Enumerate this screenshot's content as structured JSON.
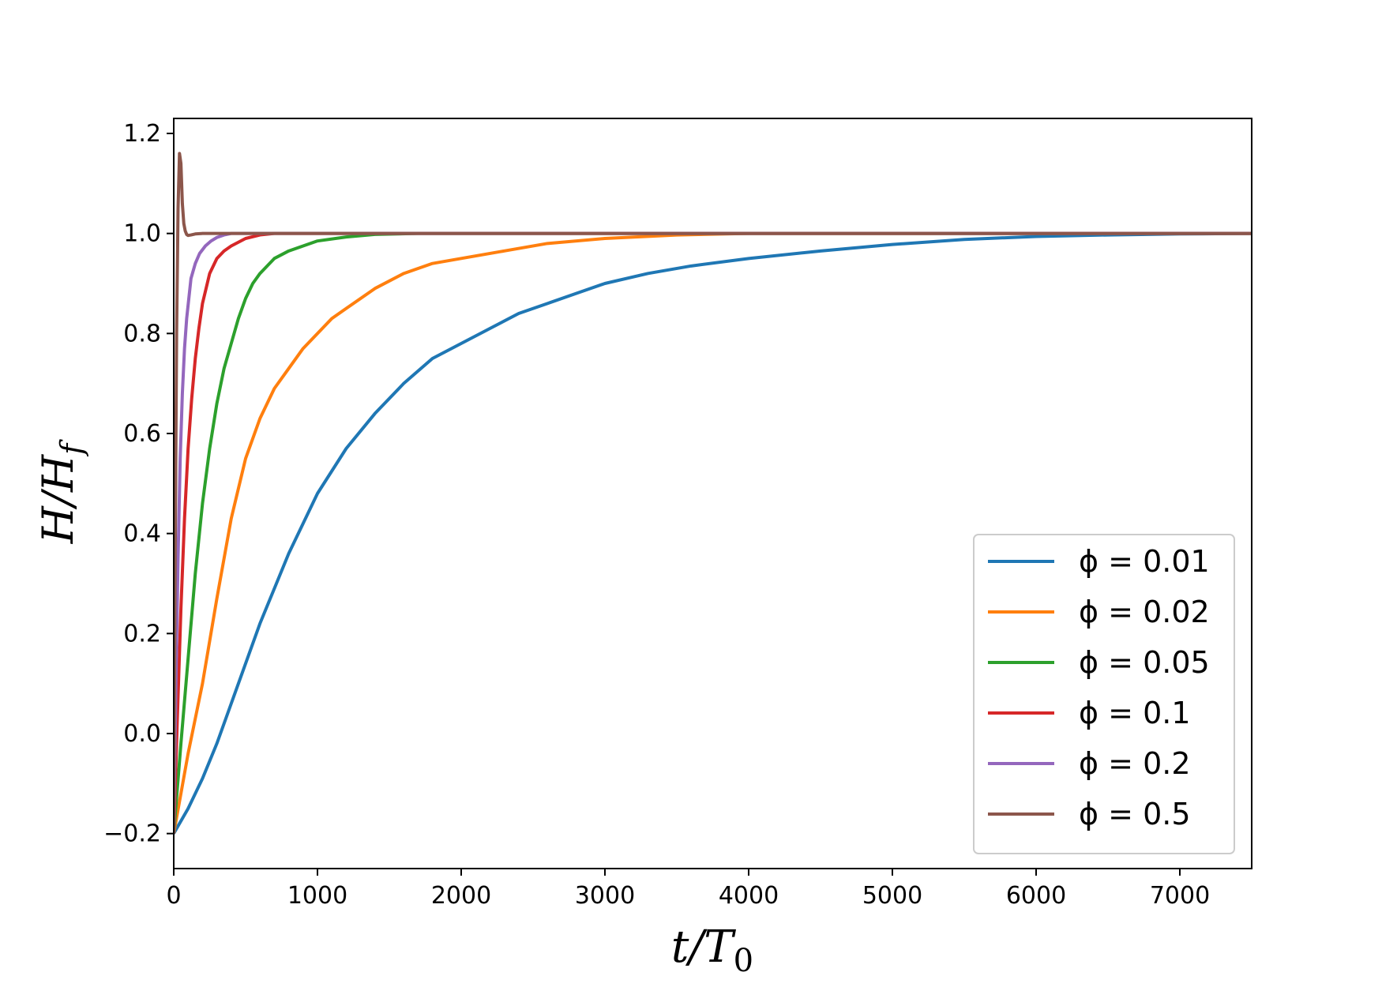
{
  "chart_data": {
    "type": "line",
    "title": "",
    "xlabel": "t/T_0",
    "ylabel": "H/H_f",
    "xlim": [
      0,
      7500
    ],
    "ylim": [
      -0.27,
      1.23
    ],
    "xticks": [
      0,
      1000,
      2000,
      3000,
      4000,
      5000,
      6000,
      7000
    ],
    "yticks": [
      -0.2,
      0.0,
      0.2,
      0.4,
      0.6,
      0.8,
      1.0,
      1.2
    ],
    "xtick_labels": [
      "0",
      "1000",
      "2000",
      "3000",
      "4000",
      "5000",
      "6000",
      "7000"
    ],
    "ytick_labels": [
      "−0.2",
      "0.0",
      "0.2",
      "0.4",
      "0.6",
      "0.8",
      "1.0",
      "1.2"
    ],
    "grid": false,
    "legend_position": "lower-right",
    "series": [
      {
        "name": "ϕ = 0.01",
        "color": "#1f77b4",
        "x": [
          0,
          100,
          200,
          300,
          400,
          500,
          600,
          700,
          800,
          900,
          1000,
          1200,
          1400,
          1600,
          1800,
          2000,
          2200,
          2400,
          2600,
          2800,
          3000,
          3300,
          3600,
          4000,
          4500,
          5000,
          5500,
          6000,
          6500,
          7000,
          7500
        ],
        "y": [
          -0.2,
          -0.15,
          -0.09,
          -0.02,
          0.06,
          0.14,
          0.22,
          0.29,
          0.36,
          0.42,
          0.48,
          0.57,
          0.64,
          0.7,
          0.75,
          0.78,
          0.81,
          0.84,
          0.86,
          0.88,
          0.9,
          0.92,
          0.935,
          0.95,
          0.965,
          0.978,
          0.988,
          0.994,
          0.997,
          0.999,
          1.0
        ]
      },
      {
        "name": "ϕ = 0.02",
        "color": "#ff7f0e",
        "x": [
          0,
          50,
          100,
          150,
          200,
          300,
          400,
          500,
          600,
          700,
          800,
          900,
          1000,
          1100,
          1200,
          1400,
          1600,
          1800,
          2000,
          2300,
          2600,
          3000,
          3500,
          4000,
          5000,
          7500
        ],
        "y": [
          -0.2,
          -0.12,
          -0.04,
          0.03,
          0.1,
          0.27,
          0.43,
          0.55,
          0.63,
          0.69,
          0.73,
          0.77,
          0.8,
          0.83,
          0.85,
          0.89,
          0.92,
          0.94,
          0.95,
          0.965,
          0.98,
          0.99,
          0.997,
          1.0,
          1.0,
          1.0
        ]
      },
      {
        "name": "ϕ = 0.05",
        "color": "#2ca02c",
        "x": [
          0,
          50,
          100,
          150,
          200,
          250,
          300,
          350,
          400,
          450,
          500,
          550,
          600,
          650,
          700,
          800,
          900,
          1000,
          1200,
          1400,
          1700,
          2000,
          7500
        ],
        "y": [
          -0.2,
          -0.02,
          0.15,
          0.32,
          0.46,
          0.57,
          0.66,
          0.73,
          0.78,
          0.83,
          0.87,
          0.9,
          0.92,
          0.935,
          0.95,
          0.965,
          0.975,
          0.985,
          0.993,
          0.998,
          1.0,
          1.0,
          1.0
        ]
      },
      {
        "name": "ϕ = 0.1",
        "color": "#d62728",
        "x": [
          0,
          25,
          50,
          75,
          100,
          125,
          150,
          175,
          200,
          250,
          300,
          350,
          400,
          500,
          600,
          700,
          800,
          7500
        ],
        "y": [
          -0.2,
          0.03,
          0.25,
          0.43,
          0.57,
          0.67,
          0.75,
          0.81,
          0.86,
          0.92,
          0.95,
          0.965,
          0.975,
          0.99,
          0.997,
          1.0,
          1.0,
          1.0
        ]
      },
      {
        "name": "ϕ = 0.2",
        "color": "#9467bd",
        "x": [
          0,
          15,
          30,
          45,
          60,
          75,
          90,
          105,
          120,
          150,
          180,
          220,
          260,
          300,
          350,
          400,
          7500
        ],
        "y": [
          -0.2,
          0.1,
          0.35,
          0.55,
          0.68,
          0.77,
          0.83,
          0.87,
          0.91,
          0.94,
          0.96,
          0.975,
          0.985,
          0.992,
          0.997,
          1.0,
          1.0
        ]
      },
      {
        "name": "ϕ = 0.5",
        "color": "#8c564b",
        "x": [
          0,
          10,
          20,
          30,
          40,
          50,
          60,
          70,
          80,
          90,
          100,
          120,
          150,
          200,
          250,
          300,
          7500
        ],
        "y": [
          -0.2,
          0.35,
          0.8,
          1.05,
          1.16,
          1.14,
          1.06,
          1.02,
          1.005,
          0.998,
          0.996,
          0.997,
          0.999,
          1.0,
          1.0,
          1.0,
          1.0
        ]
      }
    ]
  }
}
